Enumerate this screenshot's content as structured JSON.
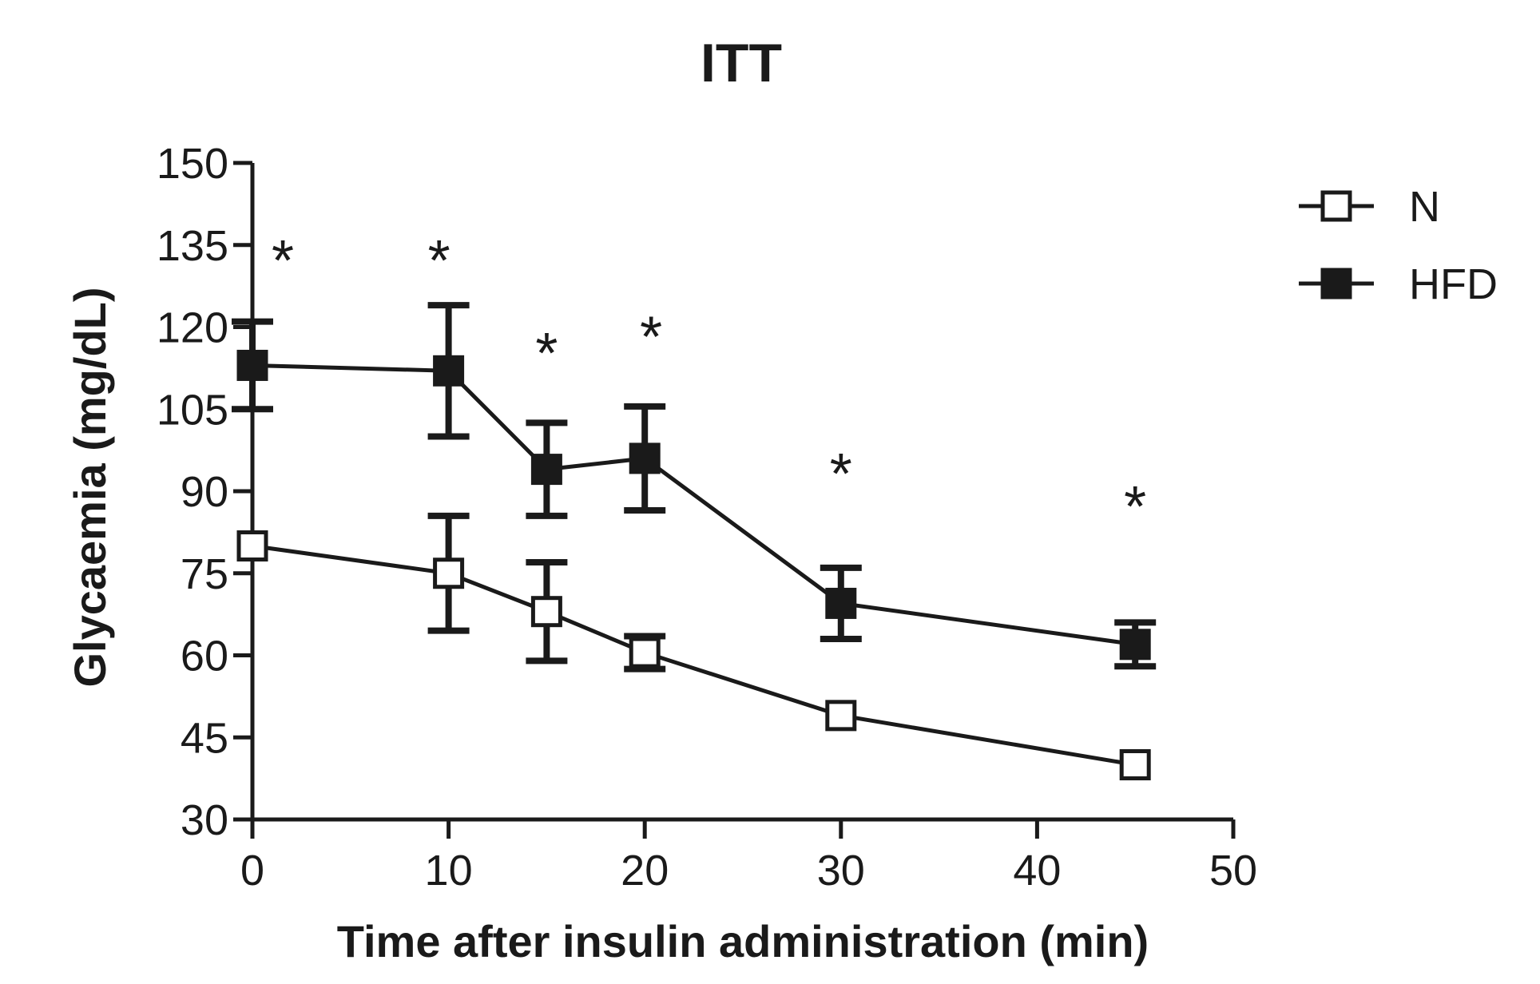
{
  "chart_data": {
    "type": "line",
    "title": "ITT",
    "xlabel": "Time after insulin administration (min)",
    "ylabel": "Glycaemia (mg/dL)",
    "xlim": [
      0,
      50
    ],
    "ylim": [
      30,
      150
    ],
    "xticks": [
      0,
      10,
      20,
      30,
      40,
      50
    ],
    "xtick_labels": [
      "0",
      "10",
      "20",
      "30",
      "40",
      "50"
    ],
    "yticks": [
      30,
      45,
      60,
      75,
      90,
      105,
      120,
      135,
      150
    ],
    "ytick_labels": [
      "30",
      "45",
      "60",
      "75",
      "90",
      "105",
      "120",
      "135",
      "150"
    ],
    "grid": false,
    "legend_position": "top-right",
    "x": [
      0,
      10,
      15,
      20,
      30,
      45
    ],
    "series": [
      {
        "name": "N",
        "marker": "open-square",
        "values": [
          80,
          75,
          68,
          60.5,
          49,
          40
        ],
        "errors": [
          0,
          10.5,
          9,
          3,
          0,
          0
        ]
      },
      {
        "name": "HFD",
        "marker": "filled-square",
        "values": [
          113,
          112,
          94,
          96,
          69.5,
          62
        ],
        "errors": [
          8,
          12,
          8.5,
          9.5,
          6.5,
          4
        ]
      }
    ],
    "annotations": [
      {
        "text": "*",
        "x": 0,
        "y": 135
      },
      {
        "text": "*",
        "x": 10,
        "y": 135
      },
      {
        "text": "*",
        "x": 15,
        "y": 118
      },
      {
        "text": "*",
        "x": 20,
        "y": 121
      },
      {
        "text": "*",
        "x": 30,
        "y": 96
      },
      {
        "text": "*",
        "x": 45,
        "y": 90
      }
    ],
    "colors": {
      "line": "#1a1a1a",
      "open_fill": "#ffffff",
      "filled_fill": "#1a1a1a"
    }
  }
}
